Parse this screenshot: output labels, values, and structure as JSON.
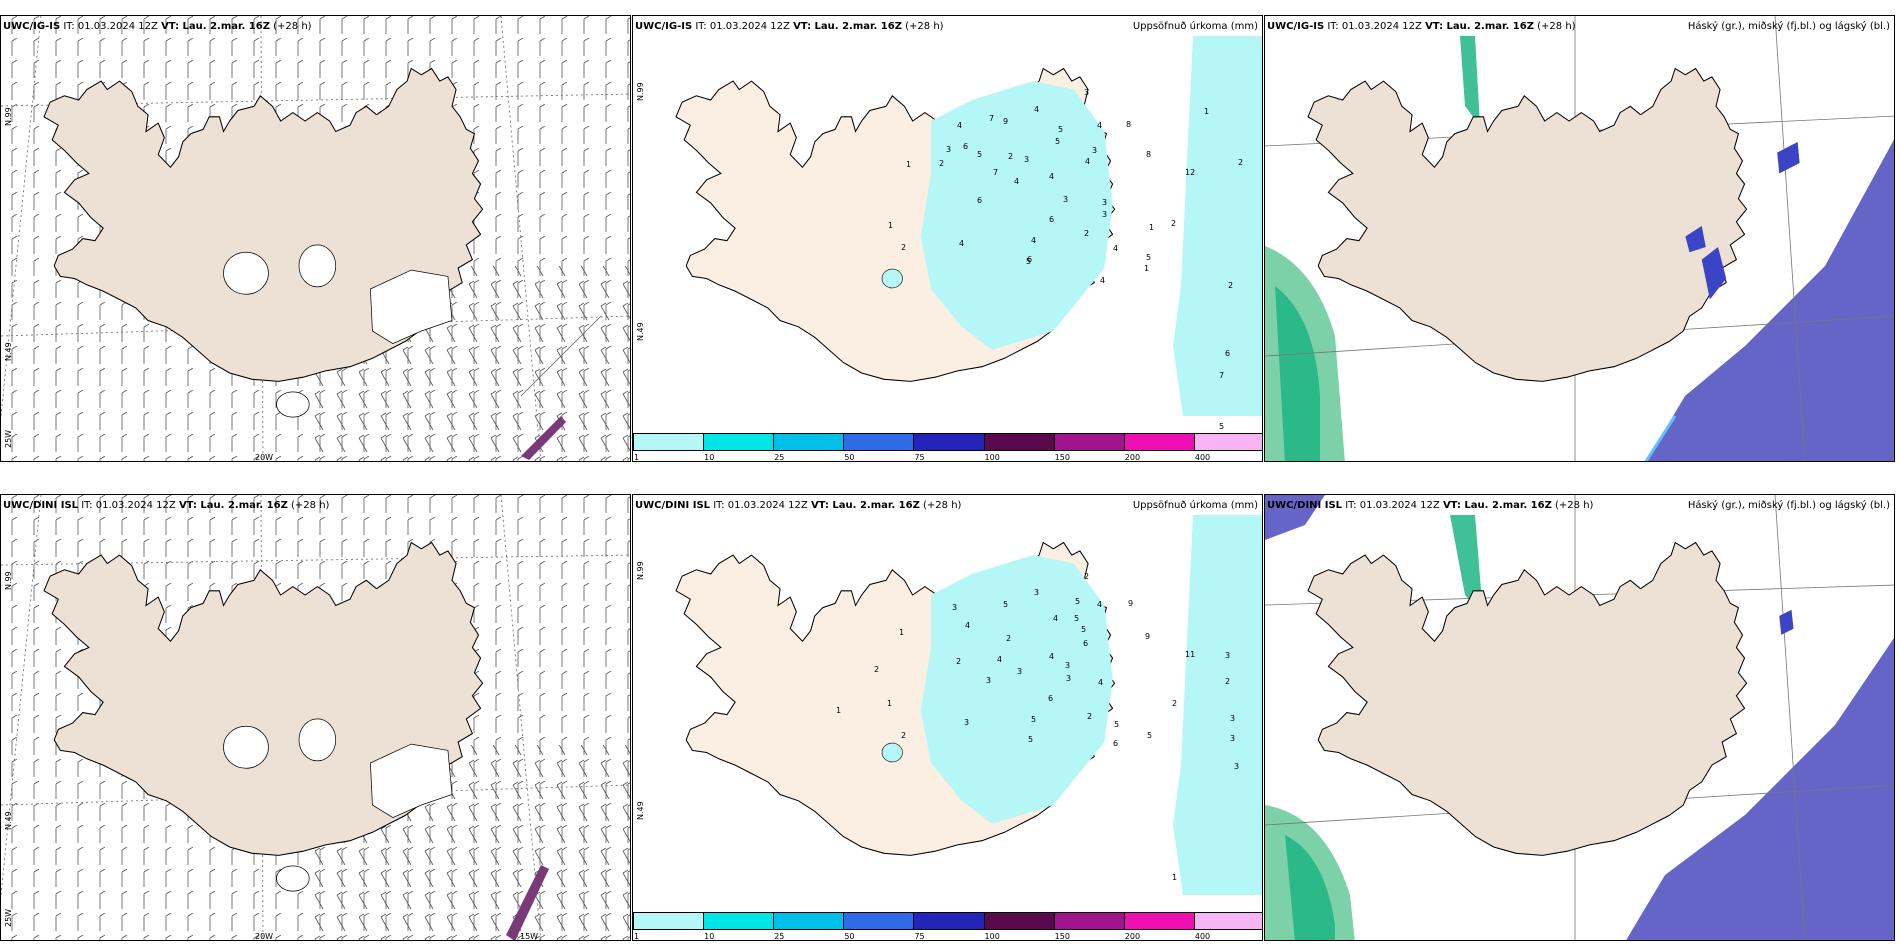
{
  "header": {
    "it_label": "IT: 01.03.2024 12Z",
    "vt_label": "VT: Lau. 2.mar. 16Z",
    "lead": "(+28 h)"
  },
  "rows": [
    {
      "model": "UWC/IG-IS",
      "top": 15
    },
    {
      "model": "UWC/DINI ISL",
      "top": 494
    }
  ],
  "titles": {
    "precip": "Uppsöfnuð úrkoma (mm)",
    "cloud": "Háský (gr.), miðský (fj.bl.) og lágský (bl.)"
  },
  "grid_labels": {
    "lat_upper": "N.99",
    "lat_lower": "N.49",
    "lon_left": "25W",
    "lon_mid": "20W",
    "lon_right": "15W"
  },
  "colorbar": {
    "levels": [
      "1",
      "10",
      "25",
      "50",
      "75",
      "100",
      "150",
      "200",
      "400"
    ],
    "colors": [
      "#b5f7f7",
      "#00e5e5",
      "#00bfe8",
      "#2f6be6",
      "#2424b8",
      "#5a0a4c",
      "#a0148e",
      "#ef10b3",
      "#f7b5f5"
    ]
  },
  "precip_labels_top": [
    [
      "3",
      1083,
      91
    ],
    [
      "1",
      1203,
      110
    ],
    [
      "2",
      1237,
      161
    ],
    [
      "4",
      1033,
      108
    ],
    [
      "4",
      956,
      124
    ],
    [
      "7",
      988,
      117
    ],
    [
      "9",
      1002,
      120
    ],
    [
      "5",
      1057,
      128
    ],
    [
      "5",
      1054,
      140
    ],
    [
      "4",
      1096,
      124
    ],
    [
      "8",
      1125,
      123
    ],
    [
      "3",
      1091,
      149
    ],
    [
      "1",
      905,
      163
    ],
    [
      "2",
      938,
      162
    ],
    [
      "6",
      962,
      145
    ],
    [
      "5",
      976,
      153
    ],
    [
      "3",
      945,
      148
    ],
    [
      "7",
      992,
      171
    ],
    [
      "2",
      1007,
      155
    ],
    [
      "3",
      1023,
      158
    ],
    [
      "4",
      1048,
      175
    ],
    [
      "4",
      1084,
      160
    ],
    [
      "8",
      1145,
      153
    ],
    [
      "12",
      1184,
      171
    ],
    [
      "4",
      1013,
      180
    ],
    [
      "3",
      1062,
      198
    ],
    [
      "3",
      1101,
      201
    ],
    [
      "3",
      1101,
      213
    ],
    [
      "6",
      976,
      199
    ],
    [
      "6",
      1048,
      218
    ],
    [
      "1",
      1148,
      226
    ],
    [
      "2",
      1170,
      222
    ],
    [
      "1",
      887,
      224
    ],
    [
      "2",
      1083,
      232
    ],
    [
      "4",
      1030,
      239
    ],
    [
      "4",
      958,
      242
    ],
    [
      "2",
      900,
      246
    ],
    [
      "4",
      1112,
      247
    ],
    [
      "6",
      1026,
      258
    ],
    [
      "5",
      1145,
      256
    ],
    [
      "5",
      1025,
      260
    ],
    [
      "1",
      1143,
      267
    ],
    [
      "4",
      1099,
      279
    ],
    [
      "2",
      1227,
      284
    ],
    [
      "6",
      1224,
      352
    ],
    [
      "7",
      1218,
      374
    ],
    [
      "5",
      1218,
      425
    ]
  ],
  "precip_labels_bottom": [
    [
      "2",
      1083,
      575
    ],
    [
      "3",
      1033,
      591
    ],
    [
      "5",
      1074,
      600
    ],
    [
      "4",
      1096,
      603
    ],
    [
      "9",
      1127,
      602
    ],
    [
      "5",
      1002,
      603
    ],
    [
      "3",
      951,
      606
    ],
    [
      "4",
      1052,
      617
    ],
    [
      "5",
      1073,
      617
    ],
    [
      "1",
      898,
      631
    ],
    [
      "4",
      964,
      624
    ],
    [
      "2",
      1005,
      637
    ],
    [
      "6",
      1082,
      642
    ],
    [
      "5",
      1080,
      628
    ],
    [
      "9",
      1144,
      635
    ],
    [
      "11",
      1184,
      653
    ],
    [
      "3",
      1224,
      654
    ],
    [
      "4",
      996,
      658
    ],
    [
      "4",
      1048,
      655
    ],
    [
      "2",
      955,
      660
    ],
    [
      "3",
      1016,
      670
    ],
    [
      "3",
      1064,
      664
    ],
    [
      "3",
      1065,
      677
    ],
    [
      "2",
      873,
      668
    ],
    [
      "3",
      985,
      679
    ],
    [
      "4",
      1097,
      681
    ],
    [
      "2",
      1224,
      680
    ],
    [
      "1",
      886,
      702
    ],
    [
      "6",
      1047,
      697
    ],
    [
      "2",
      1171,
      702
    ],
    [
      "1",
      835,
      709
    ],
    [
      "3",
      1229,
      717
    ],
    [
      "5",
      1030,
      718
    ],
    [
      "2",
      1086,
      715
    ],
    [
      "5",
      1113,
      723
    ],
    [
      "3",
      963,
      721
    ],
    [
      "2",
      900,
      734
    ],
    [
      "5",
      1027,
      738
    ],
    [
      "6",
      1112,
      742
    ],
    [
      "5",
      1146,
      734
    ],
    [
      "3",
      1229,
      737
    ],
    [
      "3",
      1233,
      765
    ],
    [
      "1",
      1171,
      876
    ]
  ]
}
